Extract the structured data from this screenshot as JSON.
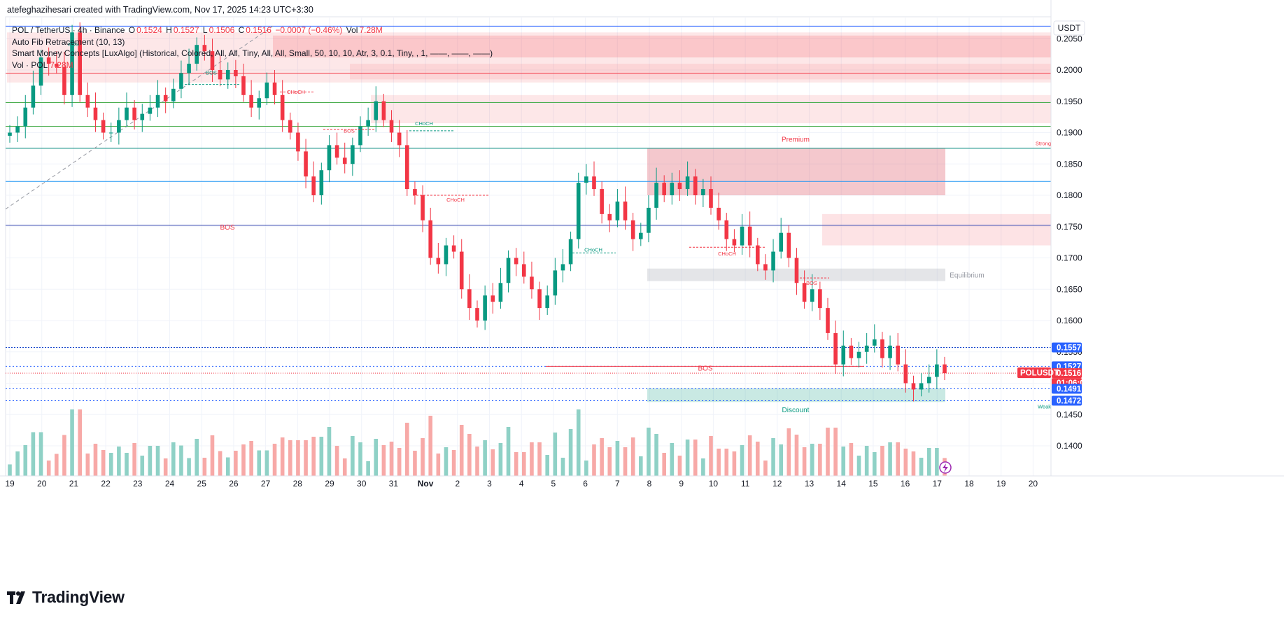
{
  "header": {
    "attribution": "atefeghazihesari created with TradingView.com, Nov 17, 2025 14:23 UTC+3:30"
  },
  "legend": {
    "symbol": "POL / TetherUS · 4h · Binance",
    "open_label": "O",
    "open": "0.1524",
    "high_label": "H",
    "high": "0.1527",
    "low_label": "L",
    "low": "0.1506",
    "close_label": "C",
    "close": "0.1516",
    "change": "−0.0007 (−0.46%)",
    "vol_label": "Vol",
    "vol": "7.28M",
    "indicator1": "Auto Fib Retracement (10, 13)",
    "indicator2": "Smart Money Concepts [LuxAlgo] (Historical, Colored, All, All, Tiny, All, All, Small, 50, 10, 10, Atr, 3, 0.1, Tiny, , 1, ——, ——, ——)",
    "indicator3_label": "Vol · POL",
    "indicator3_value": "7.28M"
  },
  "price_axis": {
    "currency": "USDT",
    "ticks": [
      "0.2050",
      "0.2000",
      "0.1950",
      "0.1900",
      "0.1850",
      "0.1800",
      "0.1750",
      "0.1700",
      "0.1650",
      "0.1600",
      "0.1550",
      "0.1500",
      "0.1450",
      "0.1400"
    ]
  },
  "price_tags": [
    {
      "label": "0.1557",
      "color": "#2962ff"
    },
    {
      "label": "0.1527",
      "color": "#2962ff"
    },
    {
      "label": "0.1516",
      "color": "#f23645"
    },
    {
      "label": "01:06:07",
      "color": "#f23645"
    },
    {
      "label": "0.1491",
      "color": "#2962ff"
    },
    {
      "label": "0.1472",
      "color": "#2962ff"
    }
  ],
  "symbol_tag": "POLUSDT",
  "time_axis": [
    "19",
    "20",
    "21",
    "22",
    "23",
    "24",
    "25",
    "26",
    "27",
    "28",
    "29",
    "30",
    "31",
    "Nov",
    "2",
    "3",
    "4",
    "5",
    "6",
    "7",
    "8",
    "9",
    "10",
    "11",
    "12",
    "13",
    "14",
    "15",
    "16",
    "17",
    "18",
    "19",
    "20"
  ],
  "zones": {
    "premium": "Premium",
    "equilibrium": "Equilibrium",
    "discount": "Discount",
    "strong": "Strong",
    "weak": "Weak"
  },
  "structure_labels": [
    {
      "text": "BOS",
      "color": "#089981"
    },
    {
      "text": "BOS",
      "color": "#089981"
    },
    {
      "text": "CHoCH",
      "color": "#f23645"
    },
    {
      "text": "BOS",
      "color": "#f23645"
    },
    {
      "text": "CHoCH",
      "color": "#089981"
    },
    {
      "text": "CHoCH",
      "color": "#f23645"
    },
    {
      "text": "CHoCH",
      "color": "#089981"
    },
    {
      "text": "CHoCH",
      "color": "#f23645"
    },
    {
      "text": "BOS",
      "color": "#f23645"
    },
    {
      "text": "BOS",
      "color": "#f23645"
    },
    {
      "text": "BOS",
      "color": "#f23645"
    }
  ],
  "brand": "TradingView",
  "colors": {
    "up": "#089981",
    "down": "#f23645",
    "vol_up": "#8fd1c6",
    "vol_down": "#f7a9a7"
  },
  "chart_data": {
    "type": "candlestick",
    "symbol": "POLUSDT",
    "timeframe": "4h",
    "y_range": [
      0.137,
      0.207
    ],
    "x_range": [
      "Oct 19",
      "Nov 20"
    ],
    "closes": [
      0.19,
      0.191,
      0.194,
      0.1975,
      0.202,
      0.201,
      0.2005,
      0.196,
      0.206,
      0.196,
      0.194,
      0.192,
      0.19,
      0.19,
      0.192,
      0.194,
      0.192,
      0.193,
      0.194,
      0.196,
      0.195,
      0.197,
      0.1995,
      0.201,
      0.204,
      0.203,
      0.2,
      0.1985,
      0.2,
      0.199,
      0.196,
      0.194,
      0.1955,
      0.198,
      0.196,
      0.192,
      0.19,
      0.187,
      0.183,
      0.18,
      0.184,
      0.188,
      0.186,
      0.185,
      0.188,
      0.191,
      0.192,
      0.195,
      0.192,
      0.19,
      0.188,
      0.181,
      0.18,
      0.176,
      0.17,
      0.169,
      0.172,
      0.171,
      0.165,
      0.162,
      0.16,
      0.164,
      0.163,
      0.166,
      0.17,
      0.169,
      0.167,
      0.165,
      0.162,
      0.164,
      0.168,
      0.169,
      0.173,
      0.182,
      0.183,
      0.181,
      0.177,
      0.176,
      0.179,
      0.176,
      0.173,
      0.174,
      0.178,
      0.182,
      0.18,
      0.182,
      0.181,
      0.183,
      0.18,
      0.181,
      0.178,
      0.176,
      0.173,
      0.172,
      0.175,
      0.172,
      0.169,
      0.168,
      0.171,
      0.174,
      0.17,
      0.166,
      0.163,
      0.165,
      0.162,
      0.158,
      0.153,
      0.156,
      0.154,
      0.155,
      0.156,
      0.157,
      0.154,
      0.156,
      0.153,
      0.15,
      0.149,
      0.15,
      0.151,
      0.153,
      0.1516
    ]
  }
}
